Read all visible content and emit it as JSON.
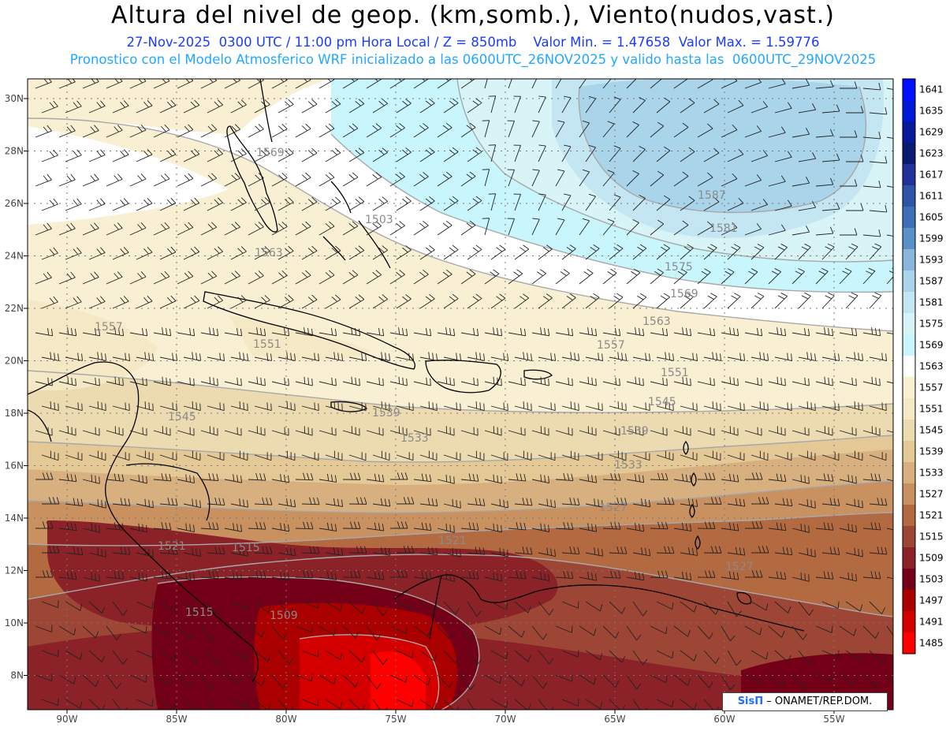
{
  "header": {
    "title": "Altura del nivel de geop. (km,somb.), Viento(nudos,vast.)",
    "subtitle": "27-Nov-2025  0300 UTC / 11:00 pm Hora Local / Z = 850mb    Valor Min. = 1.47658  Valor Max. = 1.59776",
    "model_line": "Pronostico con el Modelo Atmosferico WRF inicializado a las 0600UTC_26NOV2025 y valido hasta las  0600UTC_29NOV2025"
  },
  "map": {
    "lon_labels": [
      "90W",
      "85W",
      "80W",
      "75W",
      "70W",
      "65W",
      "60W",
      "55W"
    ],
    "lat_labels": [
      "30N",
      "28N",
      "26N",
      "24N",
      "22N",
      "20N",
      "18N",
      "16N",
      "14N",
      "12N",
      "10N",
      "8N"
    ],
    "contour_labels": [
      "1587",
      "1581",
      "1575",
      "1569",
      "1563",
      "1557",
      "1551",
      "1545",
      "1539",
      "1533",
      "1527",
      "1521",
      "1515",
      "1509",
      "1503",
      "1569",
      "1563",
      "1557",
      "1551",
      "1545",
      "1539",
      "1533",
      "1527",
      "1521",
      "1515"
    ],
    "colors": {
      "low": "#ff0000",
      "high": "#0000ff",
      "land_outline": "#000000",
      "contour_line": "#a0a0a0"
    }
  },
  "colorbar": {
    "labels": [
      "1641",
      "1635",
      "1629",
      "1623",
      "1617",
      "1611",
      "1605",
      "1599",
      "1593",
      "1587",
      "1581",
      "1575",
      "1569",
      "1563",
      "1557",
      "1551",
      "1545",
      "1539",
      "1533",
      "1527",
      "1521",
      "1515",
      "1509",
      "1503",
      "1497",
      "1491",
      "1485"
    ],
    "colors": [
      "#0010ff",
      "#0018d8",
      "#061a9a",
      "#0a1a70",
      "#22309a",
      "#2e54a8",
      "#3e6eb6",
      "#5a90c8",
      "#8ab6dc",
      "#a9d4ea",
      "#c4e6f2",
      "#d8f4f6",
      "#c8f6fc",
      "#ffffff",
      "#f9efd2",
      "#f5e8c4",
      "#ecdab0",
      "#e4c896",
      "#d8b080",
      "#c99060",
      "#b46a40",
      "#9e4636",
      "#8a2228",
      "#740018",
      "#aa0000",
      "#d40000",
      "#ff0000"
    ]
  },
  "credit": {
    "logo": "SisΠ",
    "text": "– ONAMET/REP.DOM."
  }
}
